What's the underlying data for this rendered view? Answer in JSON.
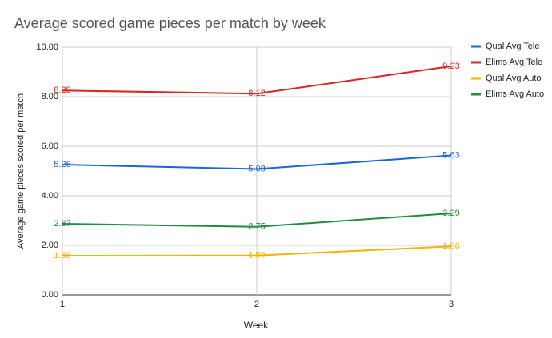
{
  "chart_data": {
    "type": "line",
    "title": "Average scored game pieces per match by week",
    "x_label": "Week",
    "y_label": "Average game pieces scored per match",
    "x": [
      1,
      2,
      3
    ],
    "xlim": [
      1,
      3
    ],
    "xticks": [
      1,
      2,
      3
    ],
    "ylim": [
      0,
      10
    ],
    "yticks": [
      {
        "value": 0,
        "label": "0.00"
      },
      {
        "value": 2,
        "label": "2.00"
      },
      {
        "value": 4,
        "label": "4.00"
      },
      {
        "value": 6,
        "label": "6.00"
      },
      {
        "value": 8,
        "label": "8.00"
      },
      {
        "value": 10,
        "label": "10.00"
      }
    ],
    "grid": true,
    "legend": "right",
    "series": [
      {
        "name": "Qual Avg Tele",
        "color": "#1a66d6",
        "values": [
          5.26,
          5.08,
          5.63
        ]
      },
      {
        "name": "Elims Avg Tele",
        "color": "#d9261c",
        "values": [
          8.25,
          8.12,
          9.23
        ]
      },
      {
        "name": "Qual Avg Auto",
        "color": "#f5b400",
        "values": [
          1.58,
          1.59,
          1.96
        ]
      },
      {
        "name": "Elims Avg Auto",
        "color": "#1e8e3e",
        "values": [
          2.87,
          2.75,
          3.29
        ]
      }
    ]
  }
}
